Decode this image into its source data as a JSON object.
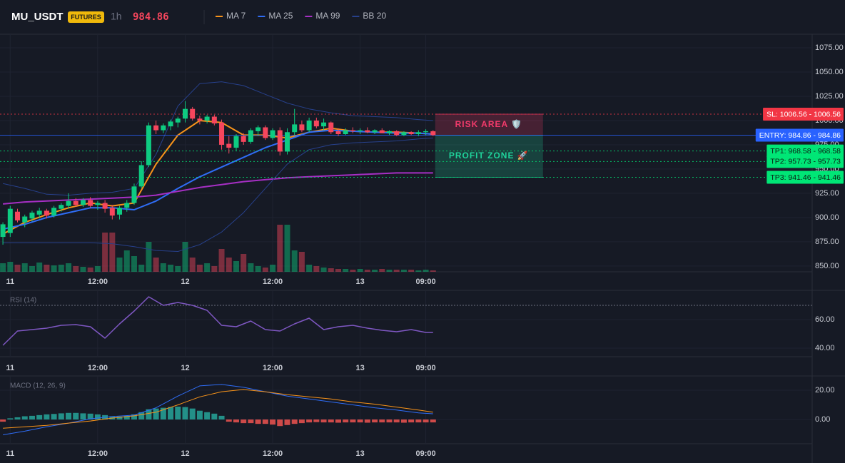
{
  "header": {
    "symbol": "MU_USDT",
    "badge": "FUTURES",
    "interval": "1h",
    "price": 984.86
  },
  "chart_data": [
    {
      "type": "candlestick",
      "x": [
        -1,
        0,
        1,
        2,
        3,
        4,
        5,
        6,
        7,
        8,
        9,
        10,
        11,
        12,
        13,
        14,
        15,
        16,
        17,
        18,
        19,
        20,
        21,
        22,
        23,
        24,
        25,
        26,
        27,
        28,
        29,
        30,
        31,
        32,
        33,
        34,
        35,
        36,
        37,
        38,
        39,
        40,
        41,
        42,
        43,
        44,
        45,
        46,
        47,
        48,
        49,
        50,
        51,
        52,
        53,
        54,
        55,
        56,
        57,
        58
      ],
      "open": [
        880,
        884,
        906,
        895,
        899,
        903,
        907,
        902,
        909,
        912,
        917,
        913,
        918,
        913,
        915,
        910,
        903,
        910,
        915,
        932,
        954,
        995,
        990,
        994,
        998,
        1002,
        1012,
        1002,
        1000,
        1004,
        998,
        976,
        972,
        984,
        978,
        989,
        993,
        982,
        990,
        968,
        988,
        996,
        990,
        1000,
        994,
        998,
        989,
        986,
        990,
        989,
        990,
        988,
        990,
        987,
        989,
        985,
        988,
        986,
        988,
        989
      ],
      "high": [
        895,
        912,
        909,
        903,
        907,
        910,
        909,
        912,
        915,
        925,
        920,
        920,
        921,
        917,
        918,
        913,
        912,
        918,
        935,
        958,
        998,
        1000,
        997,
        1001,
        1004,
        1020,
        1014,
        1005,
        1006,
        1006,
        1001,
        984,
        986,
        987,
        992,
        995,
        995,
        992,
        993,
        992,
        1012,
        1000,
        1003,
        1003,
        1002,
        999,
        992,
        992,
        993,
        992,
        993,
        991,
        992,
        990,
        990,
        989,
        989,
        990,
        991,
        990
      ],
      "low": [
        872,
        880,
        895,
        890,
        896,
        899,
        899,
        900,
        906,
        909,
        911,
        911,
        910,
        908,
        905,
        898,
        898,
        906,
        913,
        930,
        952,
        986,
        987,
        990,
        993,
        998,
        1000,
        996,
        997,
        995,
        970,
        966,
        969,
        975,
        976,
        984,
        980,
        980,
        964,
        965,
        985,
        988,
        988,
        992,
        990,
        986,
        984,
        985,
        987,
        986,
        987,
        986,
        987,
        985,
        984,
        984,
        985,
        984,
        985,
        984
      ],
      "close": [
        893,
        909,
        897,
        901,
        905,
        907,
        902,
        910,
        913,
        917,
        913,
        918,
        912,
        915,
        909,
        902,
        910,
        915,
        932,
        954,
        995,
        990,
        995,
        999,
        1002,
        1012,
        1002,
        1000,
        1004,
        997,
        975,
        972,
        984,
        978,
        990,
        993,
        982,
        990,
        968,
        988,
        996,
        990,
        1000,
        994,
        998,
        988,
        986,
        990,
        989,
        990,
        988,
        990,
        987,
        989,
        985,
        988,
        986,
        988,
        989,
        985
      ],
      "volume": [
        12,
        14,
        10,
        12,
        8,
        13,
        10,
        9,
        10,
        12,
        8,
        7,
        6,
        8,
        55,
        55,
        20,
        30,
        22,
        10,
        42,
        20,
        12,
        10,
        8,
        42,
        20,
        10,
        12,
        8,
        32,
        20,
        15,
        25,
        12,
        8,
        6,
        10,
        66,
        66,
        30,
        28,
        10,
        8,
        6,
        5,
        4,
        4,
        3,
        4,
        3,
        3,
        4,
        3,
        3,
        3,
        3,
        2,
        3,
        2
      ],
      "up_color": "#0ecb81",
      "down_color": "#f6465d",
      "series": [
        {
          "name": "MA 7",
          "color": "#f7931a",
          "x": [
            -1,
            2,
            5,
            8,
            11,
            14,
            17,
            20,
            23,
            26,
            29,
            32,
            35,
            38,
            41,
            44,
            47,
            50,
            53,
            56,
            58
          ],
          "values": [
            883,
            895,
            903,
            910,
            915,
            912,
            915,
            955,
            985,
            1000,
            998,
            985,
            985,
            982,
            988,
            992,
            989,
            988,
            988,
            987,
            986
          ]
        },
        {
          "name": "MA 25",
          "color": "#2f6df6",
          "x": [
            -1,
            2,
            5,
            8,
            11,
            14,
            17,
            20,
            23,
            26,
            29,
            32,
            35,
            38,
            41,
            44,
            47,
            50,
            53,
            56,
            58
          ],
          "values": [
            888,
            893,
            900,
            905,
            910,
            910,
            908,
            917,
            930,
            942,
            952,
            962,
            972,
            980,
            988,
            990,
            989,
            988,
            987,
            987,
            986
          ]
        },
        {
          "name": "MA 99",
          "color": "#a62fc4",
          "x": [
            -1,
            2,
            5,
            8,
            11,
            14,
            17,
            20,
            23,
            26,
            29,
            32,
            35,
            38,
            41,
            44,
            47,
            50,
            53,
            56,
            58
          ],
          "values": [
            914,
            916,
            917,
            918,
            919,
            920,
            921,
            923,
            927,
            931,
            934,
            937,
            939,
            941,
            942,
            943,
            944,
            945,
            946,
            946,
            946
          ]
        },
        {
          "name": "BB 20",
          "color": "#27408b",
          "x": [
            -1,
            2,
            5,
            8,
            11,
            14,
            17,
            20,
            23,
            26,
            29,
            32,
            35,
            38,
            41,
            44,
            47,
            50,
            53,
            56,
            58
          ],
          "upper": [
            935,
            930,
            924,
            923,
            925,
            926,
            930,
            965,
            1015,
            1038,
            1040,
            1036,
            1027,
            1018,
            1012,
            1008,
            1005,
            1004,
            1003,
            1001,
            1000
          ],
          "lower": [
            874,
            874,
            874,
            874,
            874,
            873,
            870,
            866,
            865,
            872,
            885,
            905,
            930,
            955,
            970,
            975,
            977,
            978,
            979,
            981,
            982
          ]
        }
      ],
      "levels": [
        {
          "value": 1006.56,
          "label": "SL: 1006.56 - 1006.56",
          "color": "#f23645",
          "text_color": "#ffffff",
          "dashed": true
        },
        {
          "value": 984.86,
          "label": "ENTRY: 984.86 - 984.86",
          "color": "#2962ff",
          "text_color": "#ffffff",
          "dashed": false
        },
        {
          "value": 968.58,
          "label": "TP1: 968.58 - 968.58",
          "color": "#00e676",
          "text_color": "#0b1f14",
          "dashed": true
        },
        {
          "value": 957.73,
          "label": "TP2: 957.73 - 957.73",
          "color": "#00e676",
          "text_color": "#0b1f14",
          "dashed": true
        },
        {
          "value": 941.46,
          "label": "TP3: 941.46 - 941.46",
          "color": "#00e676",
          "text_color": "#0b1f14",
          "dashed": true
        }
      ],
      "zones": [
        {
          "label": "RISK AREA 🛡️",
          "from": 984.86,
          "to": 1006.56,
          "color": "#f23a6b"
        },
        {
          "label": "PROFIT ZONE 🚀",
          "from": 941.46,
          "to": 984.86,
          "color": "#1fd39a"
        }
      ],
      "xlim": [
        -1.4,
        110
      ],
      "xticks": [
        {
          "value": 0,
          "label": "11"
        },
        {
          "value": 12,
          "label": "12:00"
        },
        {
          "value": 24,
          "label": "12"
        },
        {
          "value": 36,
          "label": "12:00"
        },
        {
          "value": 48,
          "label": "13"
        },
        {
          "value": 57,
          "label": "09:00"
        }
      ],
      "ylim": [
        844,
        1089
      ],
      "yticks": [
        {
          "value": 850,
          "label": "850.00"
        },
        {
          "value": 875,
          "label": "875.00"
        },
        {
          "value": 900,
          "label": "900.00"
        },
        {
          "value": 925,
          "label": "925.00"
        },
        {
          "value": 950,
          "label": "950.00"
        },
        {
          "value": 975,
          "label": "975.00"
        },
        {
          "value": 1000,
          "label": "1000.00"
        },
        {
          "value": 1025,
          "label": "1025.00"
        },
        {
          "value": 1050,
          "label": "1050.00"
        },
        {
          "value": 1075,
          "label": "1075.00"
        }
      ]
    },
    {
      "type": "line",
      "title": "RSI (14)",
      "color": "#7e57c2",
      "x": [
        -1,
        1,
        3,
        5,
        7,
        9,
        11,
        13,
        15,
        17,
        19,
        21,
        23,
        25,
        27,
        29,
        31,
        33,
        35,
        37,
        39,
        41,
        43,
        45,
        47,
        49,
        51,
        53,
        55,
        57,
        58
      ],
      "values": [
        42,
        52,
        53,
        54,
        56,
        56.5,
        55,
        47,
        57,
        66,
        76,
        70,
        72,
        70,
        66.5,
        56,
        55,
        59,
        53,
        52,
        57,
        61,
        53,
        55,
        56,
        54,
        52.5,
        51.5,
        53,
        51,
        51
      ],
      "ref_lines": [
        70
      ],
      "xlim": [
        -1.4,
        110
      ],
      "xticks": [
        {
          "value": 0,
          "label": "11"
        },
        {
          "value": 12,
          "label": "12:00"
        },
        {
          "value": 24,
          "label": "12"
        },
        {
          "value": 36,
          "label": "12:00"
        },
        {
          "value": 48,
          "label": "13"
        },
        {
          "value": 57,
          "label": "09:00"
        }
      ],
      "ylim": [
        34,
        80
      ],
      "yticks": [
        {
          "value": 40,
          "label": "40.00"
        },
        {
          "value": 60,
          "label": "60.00"
        }
      ]
    },
    {
      "type": "macd",
      "title": "MACD (12, 26, 9)",
      "x": [
        -1,
        2,
        5,
        8,
        11,
        14,
        17,
        20,
        23,
        26,
        29,
        32,
        35,
        38,
        41,
        44,
        47,
        50,
        53,
        56,
        58
      ],
      "macd": [
        -10.5,
        -8,
        -5,
        -2.5,
        0.5,
        2,
        3,
        8,
        16,
        23,
        24,
        22,
        19,
        16,
        14,
        12,
        10,
        8,
        6.5,
        4.5,
        3.9
      ],
      "signal": [
        -6,
        -5,
        -4,
        -2.5,
        -1,
        1,
        2.5,
        5,
        10,
        15.5,
        19,
        20.5,
        19,
        17,
        15.5,
        14,
        12,
        10.5,
        8.5,
        6.5,
        5
      ],
      "macd_color": "#2f6df6",
      "signal_color": "#f7931a",
      "hist_x": [
        -1,
        0,
        1,
        2,
        3,
        4,
        5,
        6,
        7,
        8,
        9,
        10,
        11,
        12,
        13,
        14,
        15,
        16,
        17,
        18,
        19,
        20,
        21,
        22,
        23,
        24,
        25,
        26,
        27,
        28,
        29,
        30,
        31,
        32,
        33,
        34,
        35,
        36,
        37,
        38,
        39,
        40,
        41,
        42,
        43,
        44,
        45,
        46,
        47,
        48,
        49,
        50,
        51,
        52,
        53,
        54,
        55,
        56,
        57,
        58
      ],
      "histogram": [
        -1.5,
        0.8,
        1.5,
        2.2,
        2.5,
        3,
        3.5,
        3.8,
        4.2,
        4.5,
        4.5,
        4.2,
        4,
        3.5,
        3,
        2.2,
        2,
        2.5,
        3.5,
        5,
        7,
        7.5,
        8,
        8.5,
        8.8,
        8.5,
        7.5,
        6,
        5,
        4,
        2.5,
        -1.5,
        -2,
        -2.5,
        -2.5,
        -3,
        -3,
        -3.5,
        -4.5,
        -3.8,
        -3,
        -2.5,
        -2,
        -1.8,
        -2,
        -2,
        -2.2,
        -2,
        -2,
        -2,
        -2.2,
        -2,
        -2,
        -2,
        -2,
        -2.2,
        -2,
        -2,
        -2,
        -2
      ],
      "up_color": "#26a69a",
      "down_color": "#ef5350",
      "xlim": [
        -1.4,
        110
      ],
      "xticks": [
        {
          "value": 0,
          "label": "11"
        },
        {
          "value": 12,
          "label": "12:00"
        },
        {
          "value": 24,
          "label": "12"
        },
        {
          "value": 36,
          "label": "12:00"
        },
        {
          "value": 48,
          "label": "13"
        },
        {
          "value": 57,
          "label": "09:00"
        }
      ],
      "ylim": [
        -16.6,
        29.3
      ],
      "yticks": [
        {
          "value": 0,
          "label": "0.00"
        },
        {
          "value": 20,
          "label": "20.00"
        }
      ]
    }
  ]
}
